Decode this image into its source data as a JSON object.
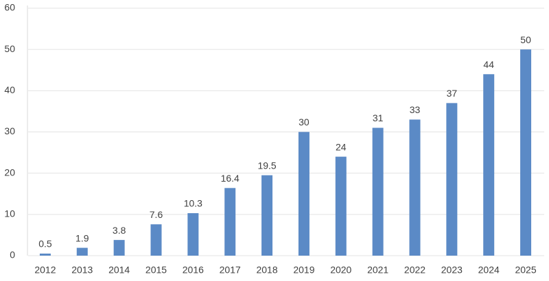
{
  "chart_data": {
    "type": "bar",
    "categories": [
      "2012",
      "2013",
      "2014",
      "2015",
      "2016",
      "2017",
      "2018",
      "2019",
      "2020",
      "2021",
      "2022",
      "2023",
      "2024",
      "2025"
    ],
    "values": [
      0.5,
      1.9,
      3.8,
      7.6,
      10.3,
      16.4,
      19.5,
      30,
      24,
      31,
      33,
      37,
      44,
      50
    ],
    "color": "#5b8ac6",
    "ylim": [
      0,
      60
    ],
    "yticks": [
      0,
      10,
      20,
      30,
      40,
      50,
      60
    ],
    "grid": true,
    "data_labels": true
  }
}
